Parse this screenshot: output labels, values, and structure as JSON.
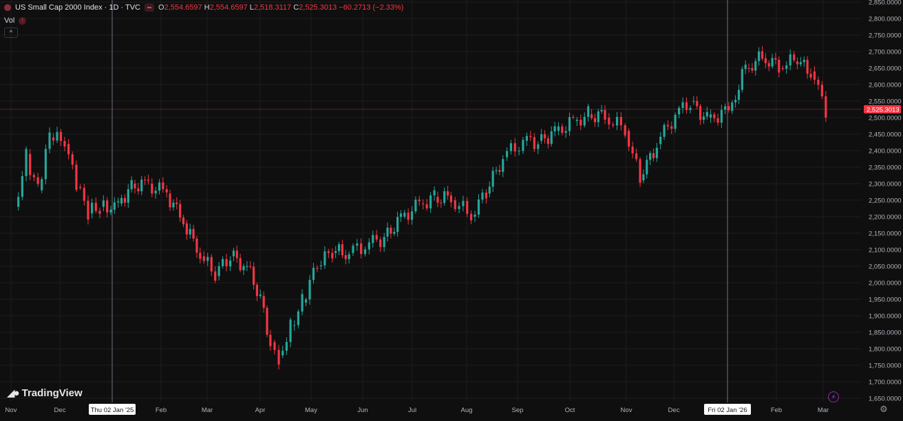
{
  "header": {
    "title": "US Small Cap 2000 Index · 1D · TVC",
    "ohlc": {
      "o_label": "O",
      "o": "2,554.6597",
      "h_label": "H",
      "h": "2,554.6597",
      "l_label": "L",
      "l": "2,518.3117",
      "c_label": "C",
      "c": "2,525.3013",
      "change": "−60.2713 (−2.33%)"
    },
    "vol_label": "Vol"
  },
  "brand": "TradingView",
  "price_label": "2,525.3013",
  "crosshair_labels": [
    "Thu 02 Jan '25",
    "Fri 02 Jan '26"
  ],
  "colors": {
    "up": "#26a69a",
    "down": "#f23645",
    "background": "#0f0f0f",
    "grid": "#1e1e1e",
    "text": "#b2b5be"
  },
  "chart_data": {
    "type": "candlestick",
    "title": "US Small Cap 2000 Index · 1D · TVC",
    "x_tick_labels": [
      "Nov",
      "Dec",
      "Feb",
      "Mar",
      "Apr",
      "May",
      "Jun",
      "Jul",
      "Aug",
      "Sep",
      "Oct",
      "Nov",
      "Dec",
      "Feb",
      "Mar"
    ],
    "y_tick_labels": [
      "1,650.0000",
      "1,700.0000",
      "1,750.0000",
      "1,800.0000",
      "1,850.0000",
      "1,900.0000",
      "1,950.0000",
      "2,000.0000",
      "2,050.0000",
      "2,100.0000",
      "2,150.0000",
      "2,200.0000",
      "2,250.0000",
      "2,300.0000",
      "2,350.0000",
      "2,400.0000",
      "2,450.0000",
      "2,500.0000",
      "2,550.0000",
      "2,600.0000",
      "2,650.0000",
      "2,700.0000",
      "2,750.0000",
      "2,800.0000",
      "2,850.0000"
    ],
    "ylim": [
      1650,
      2850
    ],
    "last_price": 2525.3013,
    "grid": true,
    "series": [
      {
        "x": [
          "2024-11-01",
          "2024-11-08",
          "2024-11-15",
          "2024-11-22",
          "2024-12-01",
          "2024-12-08",
          "2024-12-15",
          "2024-12-22",
          "2025-01-02",
          "2025-01-10",
          "2025-01-20",
          "2025-01-31",
          "2025-02-10",
          "2025-02-20",
          "2025-03-01",
          "2025-03-10",
          "2025-03-20",
          "2025-03-28",
          "2025-04-03",
          "2025-04-08",
          "2025-04-15",
          "2025-04-22",
          "2025-05-01",
          "2025-05-10",
          "2025-05-20",
          "2025-06-01",
          "2025-06-10",
          "2025-06-20",
          "2025-07-01",
          "2025-07-10",
          "2025-07-20",
          "2025-08-01",
          "2025-08-10",
          "2025-08-20",
          "2025-09-01",
          "2025-09-10",
          "2025-09-20",
          "2025-10-01",
          "2025-10-10",
          "2025-10-20",
          "2025-11-01",
          "2025-11-10",
          "2025-11-20",
          "2025-12-01",
          "2025-12-10",
          "2025-12-20",
          "2026-01-02",
          "2026-01-12",
          "2026-01-22",
          "2026-02-01",
          "2026-02-10",
          "2026-02-20",
          "2026-03-01"
        ],
        "y": [
          2230,
          2390,
          2280,
          2440,
          2420,
          2290,
          2210,
          2230,
          2240,
          2300,
          2300,
          2270,
          2180,
          2080,
          2020,
          2080,
          2050,
          1960,
          1820,
          1780,
          1870,
          1940,
          2050,
          2090,
          2090,
          2120,
          2140,
          2200,
          2240,
          2260,
          2250,
          2200,
          2270,
          2380,
          2430,
          2430,
          2460,
          2490,
          2510,
          2500,
          2460,
          2310,
          2420,
          2510,
          2550,
          2500,
          2520,
          2650,
          2680,
          2650,
          2670,
          2640,
          2525
        ]
      }
    ]
  }
}
